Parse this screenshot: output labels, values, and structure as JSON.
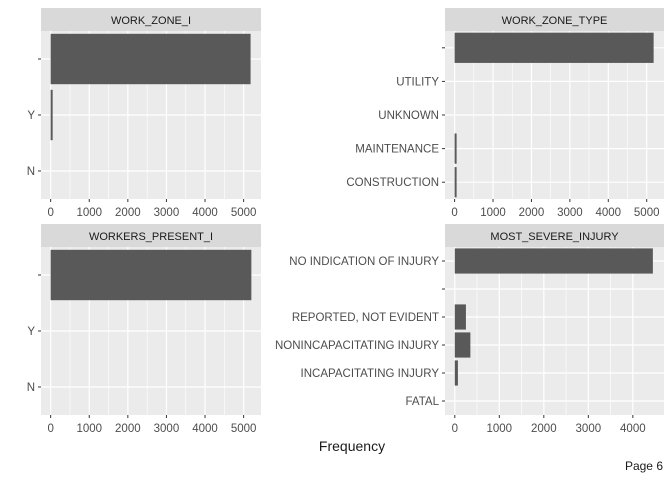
{
  "chart_data": {
    "type": "bar",
    "orientation": "horizontal",
    "xlabel": "Frequency",
    "grid": true,
    "panels": [
      {
        "title": "WORK_ZONE_I",
        "categories": [
          "",
          "Y",
          "N"
        ],
        "values": [
          5180,
          30,
          0
        ],
        "xlim": [
          -250,
          5450
        ],
        "ticks": [
          0,
          1000,
          2000,
          3000,
          4000,
          5000
        ],
        "tick_labels": [
          "0",
          "1000",
          "2000",
          "3000",
          "4000",
          "5000"
        ]
      },
      {
        "title": "WORK_ZONE_TYPE",
        "categories": [
          "",
          "UTILITY",
          "UNKNOWN",
          "MAINTENANCE",
          "CONSTRUCTION"
        ],
        "values": [
          5180,
          0,
          0,
          5,
          20
        ],
        "xlim": [
          -250,
          5450
        ],
        "ticks": [
          0,
          1000,
          2000,
          3000,
          4000,
          5000
        ],
        "tick_labels": [
          "0",
          "1000",
          "2000",
          "3000",
          "4000",
          "5000"
        ]
      },
      {
        "title": "WORKERS_PRESENT_I",
        "categories": [
          "",
          "Y",
          "N"
        ],
        "values": [
          5200,
          0,
          0
        ],
        "xlim": [
          -250,
          5450
        ],
        "ticks": [
          0,
          1000,
          2000,
          3000,
          4000,
          5000
        ],
        "tick_labels": [
          "0",
          "1000",
          "2000",
          "3000",
          "4000",
          "5000"
        ]
      },
      {
        "title": "MOST_SEVERE_INJURY",
        "categories": [
          "NO INDICATION OF INJURY",
          "",
          "REPORTED, NOT EVIDENT",
          "NONINCAPACITATING INJURY",
          "INCAPACITATING INJURY",
          "FATAL"
        ],
        "values": [
          4450,
          0,
          250,
          350,
          70,
          0
        ],
        "xlim": [
          -220,
          4700
        ],
        "ticks": [
          0,
          1000,
          2000,
          3000,
          4000
        ],
        "tick_labels": [
          "0",
          "1000",
          "2000",
          "3000",
          "4000"
        ]
      }
    ]
  },
  "footer": {
    "page": "Page 6"
  },
  "colors": {
    "panel_bg": "#ebebeb",
    "strip_bg": "#d9d9d9",
    "bar": "#595959",
    "grid": "#ffffff"
  }
}
